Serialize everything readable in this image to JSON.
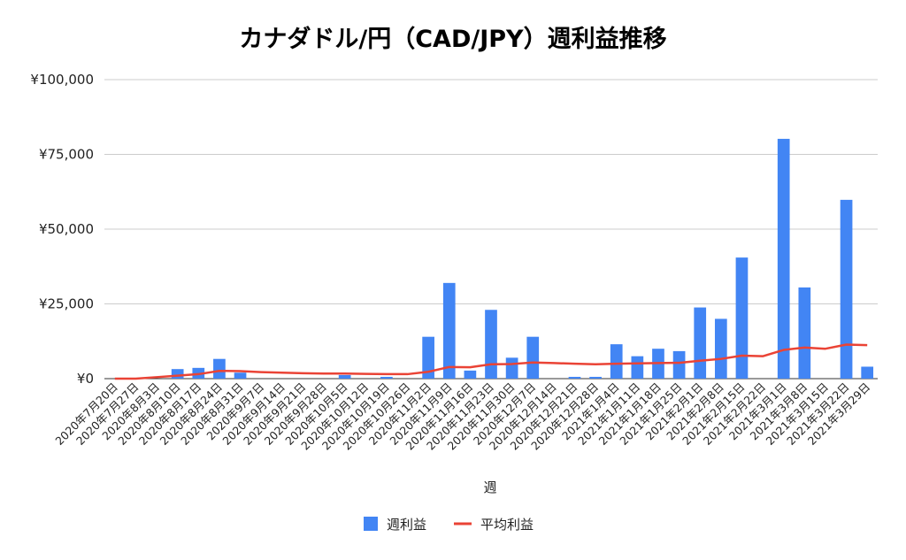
{
  "chart_data": {
    "type": "bar",
    "title": "カナダドル/円（CAD/JPY）週利益推移",
    "xlabel": "週",
    "ylabel": "",
    "ylim": [
      0,
      100000
    ],
    "y_ticks": [
      "¥0",
      "¥25,000",
      "¥50,000",
      "¥75,000",
      "¥100,000"
    ],
    "y_tick_values": [
      0,
      25000,
      50000,
      75000,
      100000
    ],
    "grid": true,
    "legend_position": "bottom",
    "categories": [
      "2020年7月20日",
      "2020年7月27日",
      "2020年8月3日",
      "2020年8月10日",
      "2020年8月17日",
      "2020年8月24日",
      "2020年8月31日",
      "2020年9月7日",
      "2020年9月14日",
      "2020年9月21日",
      "2020年9月28日",
      "2020年10月5日",
      "2020年10月12日",
      "2020年10月19日",
      "2020年10月26日",
      "2020年11月2日",
      "2020年11月9日",
      "2020年11月16日",
      "2020年11月23日",
      "2020年11月30日",
      "2020年12月7日",
      "2020年12月14日",
      "2020年12月21日",
      "2020年12月28日",
      "2021年1月4日",
      "2021年1月11日",
      "2021年1月18日",
      "2021年1月25日",
      "2021年2月1日",
      "2021年2月8日",
      "2021年2月15日",
      "2021年2月22日",
      "2021年3月1日",
      "2021年3月8日",
      "2021年3月15日",
      "2021年3月22日",
      "2021年3月29日"
    ],
    "series": [
      {
        "name": "週利益",
        "type": "bar",
        "color": "#4285f4",
        "values": [
          0,
          0,
          0,
          3200,
          3600,
          6600,
          2000,
          0,
          0,
          0,
          0,
          1200,
          0,
          600,
          0,
          14000,
          32000,
          2700,
          23000,
          7000,
          14000,
          0,
          600,
          600,
          11500,
          7500,
          10000,
          9200,
          23800,
          20000,
          40500,
          0,
          80200,
          30500,
          0,
          59800,
          4000
        ]
      },
      {
        "name": "平均利益",
        "type": "line",
        "color": "#ea4335",
        "values": [
          0,
          0,
          500,
          1000,
          1500,
          2600,
          2500,
          2200,
          2000,
          1800,
          1700,
          1700,
          1600,
          1500,
          1500,
          2300,
          3900,
          3800,
          4800,
          4900,
          5400,
          5200,
          5000,
          4800,
          5000,
          5100,
          5200,
          5300,
          6000,
          6600,
          7700,
          7500,
          9600,
          10400,
          10000,
          11400,
          11200
        ]
      }
    ]
  }
}
